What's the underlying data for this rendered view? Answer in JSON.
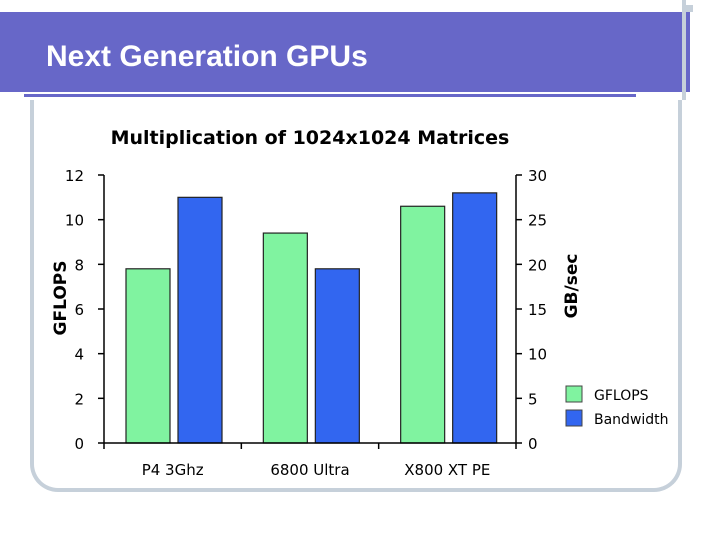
{
  "slide": {
    "title": "Next Generation GPUs"
  },
  "chart_data": {
    "type": "bar",
    "title": "Multiplication of 1024x1024 Matrices",
    "categories": [
      "P4 3Ghz",
      "6800 Ultra",
      "X800 XT PE"
    ],
    "series": [
      {
        "name": "GFLOPS",
        "axis": "left",
        "color": "#80f3a0",
        "values": [
          7.8,
          9.4,
          10.6
        ]
      },
      {
        "name": "Bandwidth",
        "axis": "right",
        "color": "#3266f0",
        "values": [
          27.5,
          19.5,
          28.0
        ]
      }
    ],
    "ylabel_left": "GFLOPS",
    "ylabel_right": "GB/sec",
    "ylim_left": [
      0,
      12
    ],
    "ylim_right": [
      0,
      30
    ],
    "yticks_left": [
      "0",
      "2",
      "4",
      "6",
      "8",
      "10",
      "12"
    ],
    "yticks_right": [
      "0",
      "5",
      "10",
      "15",
      "20",
      "25",
      "30"
    ],
    "legend": [
      "GFLOPS",
      "Bandwidth"
    ],
    "legend_position": "right",
    "grid": false
  }
}
